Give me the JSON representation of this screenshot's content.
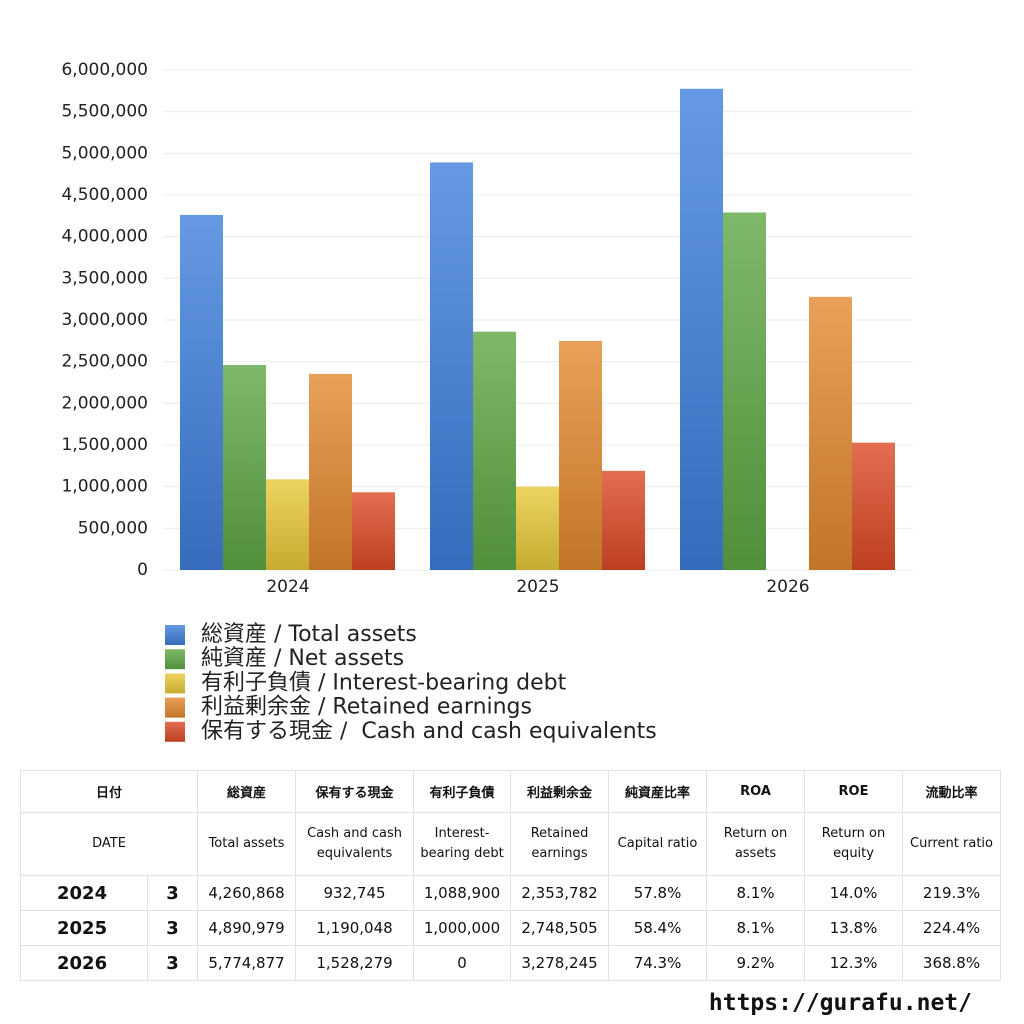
{
  "chart_data": {
    "type": "bar",
    "categories": [
      "2024",
      "2025",
      "2026"
    ],
    "series": [
      {
        "name": "総資産 / Total assets",
        "color": "#3f7fdc",
        "values": [
          4260868,
          4890979,
          5774877
        ]
      },
      {
        "name": "純資産 / Net assets",
        "color": "#5ea845",
        "values": [
          2460000,
          2860000,
          4290000
        ]
      },
      {
        "name": "有利子負債 / Interest-bearing debt",
        "color": "#e9c93a",
        "values": [
          1088900,
          1000000,
          0
        ]
      },
      {
        "name": "利益剰余金 / Retained earnings",
        "color": "#e38a2f",
        "values": [
          2353782,
          2748505,
          3278245
        ]
      },
      {
        "name": "保有する現金 /  Cash and cash equivalents",
        "color": "#dd4a26",
        "values": [
          932745,
          1190048,
          1528279
        ]
      }
    ],
    "ylim": [
      0,
      6000000
    ],
    "yticks": [
      0,
      {
        "value": 500000,
        "label": "500,000"
      },
      {
        "value": 1000000,
        "label": "1,000,000"
      },
      {
        "value": 1500000,
        "label": "1,500,000"
      },
      {
        "value": 2000000,
        "label": "2,000,000"
      },
      {
        "value": 2500000,
        "label": "2,500,000"
      },
      {
        "value": 3000000,
        "label": "3,000,000"
      },
      {
        "value": 3500000,
        "label": "3,500,000"
      },
      {
        "value": 4000000,
        "label": "4,000,000"
      },
      {
        "value": 4500000,
        "label": "4,500,000"
      },
      {
        "value": 5000000,
        "label": "5,000,000"
      },
      {
        "value": 5500000,
        "label": "5,500,000"
      },
      {
        "value": 6000000,
        "label": "6,000,000"
      }
    ],
    "grid": true
  },
  "table": {
    "header_ja": [
      "日付",
      "総資産",
      "保有する現金",
      "有利子負債",
      "利益剰余金",
      "純資産比率",
      "ROA",
      "ROE",
      "流動比率"
    ],
    "header_en": [
      "DATE",
      "Total assets",
      "Cash and cash equivalents",
      "Interest-bearing debt",
      "Retained earnings",
      "Capital ratio",
      "Return on assets",
      "Return on equity",
      "Current ratio"
    ],
    "rows": [
      [
        "2024",
        "3",
        "4,260,868",
        "932,745",
        "1,088,900",
        "2,353,782",
        "57.8%",
        "8.1%",
        "14.0%",
        "219.3%"
      ],
      [
        "2025",
        "3",
        "4,890,979",
        "1,190,048",
        "1,000,000",
        "2,748,505",
        "58.4%",
        "8.1%",
        "13.8%",
        "224.4%"
      ],
      [
        "2026",
        "3",
        "5,774,877",
        "1,528,279",
        "0",
        "3,278,245",
        "74.3%",
        "9.2%",
        "12.3%",
        "368.8%"
      ]
    ]
  },
  "footer": "https://gurafu.net/"
}
